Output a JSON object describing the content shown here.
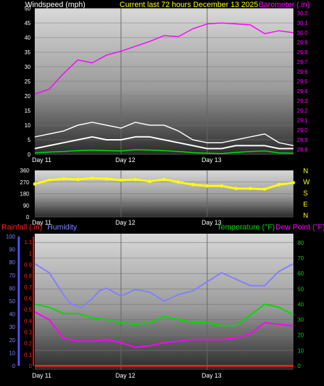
{
  "header": {
    "left_label": "Windspeed (mph)",
    "center_label": "Current last 72 hours December 13 2025",
    "right_label": "Barometer (.in)"
  },
  "colors": {
    "wind": "#ffffff",
    "gust": "#ffffff",
    "wind_avg": "#00e000",
    "barometer": "#ff00ff",
    "direction": "#ffff00",
    "humidity": "#8080ff",
    "temperature": "#00dd00",
    "dewpoint": "#ff00ff",
    "rain": "#ff2020"
  },
  "chart_data": [
    {
      "type": "line",
      "x_labels": [
        "Day 11",
        "Day 12",
        "Day 13"
      ],
      "y_left": {
        "label": "Windspeed (mph)",
        "ticks": [
          0,
          5,
          10,
          15,
          20,
          25,
          30,
          35,
          40,
          45,
          50
        ],
        "range": [
          0,
          50
        ]
      },
      "y_right": {
        "label": "Barometer (.in)",
        "ticks": [
          28.8,
          28.9,
          29.0,
          29.1,
          29.2,
          29.3,
          29.4,
          29.5,
          29.6,
          29.7,
          29.8,
          29.9,
          30.0,
          30.1,
          30.2
        ],
        "range": [
          28.75,
          30.25
        ]
      },
      "grid": true,
      "series": [
        {
          "name": "Barometer (.in)",
          "axis": "right",
          "x": [
            0,
            4,
            8,
            12,
            16,
            20,
            24,
            28,
            32,
            36,
            40,
            44,
            48,
            52,
            56,
            60,
            64,
            68,
            72
          ],
          "values": [
            29.37,
            29.42,
            29.58,
            29.72,
            29.69,
            29.77,
            29.81,
            29.86,
            29.91,
            29.97,
            29.96,
            30.04,
            30.09,
            30.1,
            30.09,
            30.08,
            29.99,
            30.02,
            30.0
          ]
        },
        {
          "name": "Windspeed (mph)",
          "axis": "left",
          "x": [
            0,
            4,
            8,
            12,
            16,
            20,
            24,
            28,
            32,
            36,
            40,
            44,
            48,
            52,
            56,
            60,
            64,
            68,
            72
          ],
          "values": [
            2,
            3,
            4,
            5,
            6,
            5,
            5,
            6,
            6,
            5,
            4,
            3,
            2,
            2,
            3,
            3,
            3,
            2,
            2
          ]
        },
        {
          "name": "Wind gust",
          "axis": "left",
          "x": [
            0,
            4,
            8,
            12,
            16,
            20,
            24,
            28,
            32,
            36,
            40,
            44,
            48,
            52,
            56,
            60,
            64,
            68,
            72
          ],
          "values": [
            6,
            7,
            8,
            10,
            11,
            10,
            9,
            11,
            10,
            10,
            8,
            5,
            4,
            4,
            5,
            6,
            7,
            4,
            3
          ]
        },
        {
          "name": "Avg wind",
          "axis": "left",
          "x": [
            0,
            4,
            8,
            12,
            16,
            20,
            24,
            28,
            32,
            36,
            40,
            44,
            48,
            52,
            56,
            60,
            64,
            68,
            72
          ],
          "values": [
            0.5,
            0.8,
            1,
            1.3,
            1.5,
            1.3,
            1.2,
            1.6,
            1.5,
            1.3,
            1,
            0.6,
            0.4,
            0.3,
            0.7,
            1,
            1.2,
            0.5,
            0.4
          ]
        }
      ]
    },
    {
      "type": "scatter",
      "x_labels": [
        "Day 11",
        "Day 12",
        "Day 13"
      ],
      "y_left": {
        "ticks": [
          0,
          90,
          180,
          270,
          360
        ],
        "range": [
          0,
          360
        ]
      },
      "compass_labels": [
        "N",
        "W",
        "S",
        "E",
        "N"
      ],
      "grid": true,
      "series": [
        {
          "name": "Wind direction",
          "x": [
            0,
            4,
            8,
            12,
            16,
            20,
            24,
            28,
            32,
            36,
            40,
            44,
            48,
            52,
            56,
            60,
            64,
            68,
            72
          ],
          "values": [
            255,
            285,
            295,
            290,
            300,
            295,
            285,
            290,
            275,
            290,
            270,
            250,
            240,
            240,
            220,
            220,
            215,
            250,
            265
          ]
        }
      ]
    },
    {
      "type": "line",
      "header": {
        "rain_label": "Rainfall (.in)",
        "humidity_label": "Humidity",
        "temperature_label": "Temperature (°F)",
        "dewpoint_label": "Dew Point (°F)"
      },
      "x_labels": [
        "Day 11",
        "Day 12",
        "Day 13"
      ],
      "y_humidity": {
        "ticks": [
          0,
          10,
          20,
          30,
          40,
          50,
          60,
          70,
          80,
          90,
          100
        ],
        "range": [
          0,
          100
        ]
      },
      "y_rain": {
        "ticks": [
          0,
          0.1,
          0.2,
          0.3,
          0.4,
          0.5,
          0.6,
          0.7,
          0.8,
          0.9,
          1,
          1.1
        ],
        "range": [
          0,
          1.15
        ]
      },
      "y_temp": {
        "ticks": [
          0,
          10,
          20,
          30,
          40,
          50,
          60,
          70,
          80
        ],
        "range": [
          0,
          84
        ]
      },
      "grid": true,
      "series": [
        {
          "name": "Humidity",
          "axis": "humidity",
          "x": [
            0,
            4,
            8,
            10,
            13,
            16,
            18,
            20,
            24,
            28,
            32,
            36,
            40,
            44,
            48,
            52,
            56,
            60,
            64,
            68,
            72
          ],
          "values": [
            79,
            72,
            55,
            48,
            45,
            52,
            58,
            60,
            54,
            59,
            57,
            50,
            55,
            58,
            65,
            72,
            67,
            62,
            62,
            73,
            79
          ]
        },
        {
          "name": "Temperature (°F)",
          "axis": "temp",
          "x": [
            0,
            4,
            8,
            12,
            16,
            20,
            24,
            28,
            32,
            36,
            40,
            44,
            48,
            52,
            56,
            60,
            64,
            68,
            72
          ],
          "values": [
            40,
            38,
            34,
            34,
            31,
            30,
            28,
            27,
            28,
            32,
            30,
            28,
            28,
            26,
            26,
            33,
            40,
            38,
            33
          ]
        },
        {
          "name": "Dew Point (°F)",
          "axis": "temp",
          "x": [
            0,
            4,
            8,
            12,
            16,
            20,
            24,
            28,
            32,
            36,
            40,
            44,
            48,
            52,
            56,
            60,
            64,
            68,
            72
          ],
          "values": [
            35,
            30,
            18,
            16,
            16,
            17,
            15,
            12,
            13,
            15,
            16,
            17,
            17,
            17,
            18,
            21,
            28,
            27,
            26
          ]
        },
        {
          "name": "Rainfall (.in)",
          "axis": "rain",
          "x": [
            0,
            72
          ],
          "values": [
            0,
            0
          ]
        }
      ]
    }
  ]
}
